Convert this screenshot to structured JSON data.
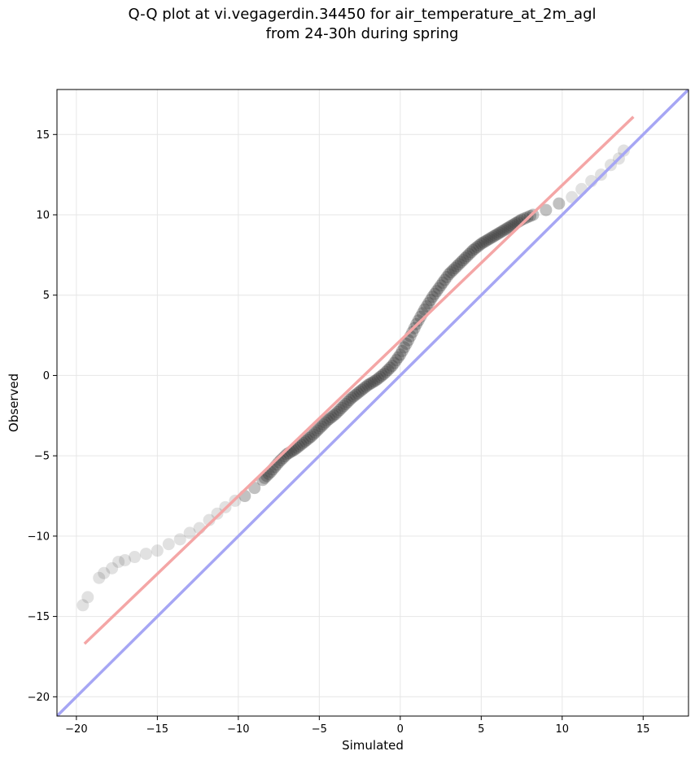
{
  "chart_data": {
    "type": "scatter",
    "title": "Q-Q plot at vi.vegagerdin.34450 for air_temperature_at_2m_agl",
    "subtitle": "from 24-30h during spring",
    "xlabel": "Simulated",
    "ylabel": "Observed",
    "xlim": [
      -21.2,
      17.8
    ],
    "ylim": [
      -21.2,
      17.8
    ],
    "xticks": [
      -20,
      -15,
      -10,
      -5,
      0,
      5,
      10,
      15
    ],
    "yticks": [
      -20,
      -15,
      -10,
      -5,
      0,
      5,
      10,
      15
    ],
    "xtick_labels": [
      "−20",
      "−15",
      "−10",
      "−5",
      "0",
      "5",
      "10",
      "15"
    ],
    "ytick_labels": [
      "−20",
      "−15",
      "−10",
      "−5",
      "0",
      "5",
      "10",
      "15"
    ],
    "grid": true,
    "fit_line": {
      "color": "#f4a6a6",
      "x": [
        -19.5,
        14.4
      ],
      "y": [
        -16.7,
        16.1
      ]
    },
    "identity_line": {
      "color": "#a6a6f4"
    },
    "point_color": "#333333",
    "points": [
      [
        -19.6,
        -14.3
      ],
      [
        -19.3,
        -13.8
      ],
      [
        -18.6,
        -12.6
      ],
      [
        -18.3,
        -12.3
      ],
      [
        -17.8,
        -12.0
      ],
      [
        -17.4,
        -11.6
      ],
      [
        -17.0,
        -11.5
      ],
      [
        -16.4,
        -11.3
      ],
      [
        -15.7,
        -11.1
      ],
      [
        -15.0,
        -10.9
      ],
      [
        -14.3,
        -10.5
      ],
      [
        -13.6,
        -10.2
      ],
      [
        -13.0,
        -9.8
      ],
      [
        -12.4,
        -9.5
      ],
      [
        -11.8,
        -9.0
      ],
      [
        -11.3,
        -8.6
      ],
      [
        -10.8,
        -8.2
      ],
      [
        -10.2,
        -7.8
      ],
      [
        -9.6,
        -7.5
      ],
      [
        -9.0,
        -7.0
      ],
      [
        -8.5,
        -6.5
      ],
      [
        -8.0,
        -6.0
      ],
      [
        -7.5,
        -5.4
      ],
      [
        -7.0,
        -4.9
      ],
      [
        -6.5,
        -4.6
      ],
      [
        -6.0,
        -4.2
      ],
      [
        -5.5,
        -3.8
      ],
      [
        -5.0,
        -3.3
      ],
      [
        -4.5,
        -2.8
      ],
      [
        -4.0,
        -2.4
      ],
      [
        -3.5,
        -1.9
      ],
      [
        -3.0,
        -1.4
      ],
      [
        -2.5,
        -1.0
      ],
      [
        -2.0,
        -0.6
      ],
      [
        -1.5,
        -0.3
      ],
      [
        -1.0,
        0.1
      ],
      [
        -0.5,
        0.6
      ],
      [
        0.0,
        1.3
      ],
      [
        0.5,
        2.2
      ],
      [
        1.0,
        3.2
      ],
      [
        1.5,
        4.1
      ],
      [
        2.0,
        4.9
      ],
      [
        2.5,
        5.6
      ],
      [
        3.0,
        6.3
      ],
      [
        3.5,
        6.8
      ],
      [
        4.0,
        7.3
      ],
      [
        4.5,
        7.8
      ],
      [
        5.0,
        8.2
      ],
      [
        5.5,
        8.5
      ],
      [
        6.0,
        8.8
      ],
      [
        6.5,
        9.1
      ],
      [
        7.0,
        9.4
      ],
      [
        7.5,
        9.7
      ],
      [
        8.2,
        10.0
      ],
      [
        9.0,
        10.3
      ],
      [
        9.8,
        10.7
      ],
      [
        10.6,
        11.1
      ],
      [
        11.2,
        11.6
      ],
      [
        11.8,
        12.1
      ],
      [
        12.4,
        12.5
      ],
      [
        13.0,
        13.1
      ],
      [
        13.5,
        13.5
      ],
      [
        13.8,
        14.0
      ]
    ]
  }
}
